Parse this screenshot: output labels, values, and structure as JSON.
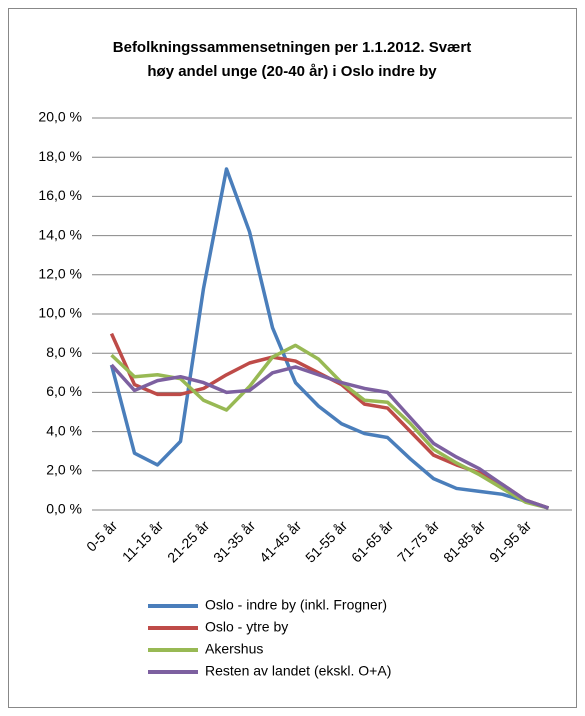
{
  "chart_data": {
    "type": "line",
    "title": [
      "Befolkningssammensetningen per 1.1.2012. Svært",
      "høy andel unge (20-40 år) i Oslo indre by"
    ],
    "categories": [
      "0-5 år",
      null,
      "11-15 år",
      null,
      "21-25 år",
      null,
      "31-35 år",
      null,
      "41-45 år",
      null,
      "51-55 år",
      null,
      "61-65 år",
      null,
      "71-75 år",
      null,
      "81-85 år",
      null,
      "91-95 år",
      null
    ],
    "series": [
      {
        "name": "Oslo - indre by (inkl. Frogner)",
        "color": "#4a7ebb",
        "values": [
          7.4,
          2.9,
          2.3,
          3.5,
          11.3,
          17.4,
          14.2,
          9.3,
          6.5,
          5.3,
          4.4,
          3.9,
          3.7,
          2.6,
          1.6,
          1.1,
          0.95,
          0.8,
          0.45,
          0.1
        ]
      },
      {
        "name": "Oslo - ytre by",
        "color": "#be4b48",
        "values": [
          9.0,
          6.4,
          5.9,
          5.9,
          6.2,
          6.9,
          7.5,
          7.8,
          7.6,
          7.0,
          6.4,
          5.4,
          5.2,
          4.0,
          2.8,
          2.3,
          1.9,
          1.3,
          0.5,
          0.1
        ]
      },
      {
        "name": "Akershus",
        "color": "#98b954",
        "values": [
          7.9,
          6.8,
          6.9,
          6.7,
          5.6,
          5.1,
          6.3,
          7.8,
          8.4,
          7.7,
          6.5,
          5.6,
          5.5,
          4.4,
          3.1,
          2.4,
          1.8,
          1.1,
          0.4,
          0.1
        ]
      },
      {
        "name": "Resten av landet (ekskl. O+A)",
        "color": "#7d60a0",
        "values": [
          7.4,
          6.1,
          6.6,
          6.8,
          6.5,
          6.0,
          6.1,
          7.0,
          7.3,
          6.9,
          6.5,
          6.2,
          6.0,
          4.7,
          3.4,
          2.7,
          2.1,
          1.3,
          0.5,
          0.1
        ]
      }
    ],
    "ylim": [
      0,
      20
    ],
    "yticks": [
      {
        "value": 0,
        "label": "0,0 %"
      },
      {
        "value": 2,
        "label": "2,0 %"
      },
      {
        "value": 4,
        "label": "4,0 %"
      },
      {
        "value": 6,
        "label": "6,0 %"
      },
      {
        "value": 8,
        "label": "8,0 %"
      },
      {
        "value": 10,
        "label": "10,0 %"
      },
      {
        "value": 12,
        "label": "12,0 %"
      },
      {
        "value": 14,
        "label": "14,0 %"
      },
      {
        "value": 16,
        "label": "16,0 %"
      },
      {
        "value": 18,
        "label": "18,0 %"
      },
      {
        "value": 20,
        "label": "20,0 %"
      }
    ],
    "grid": true
  }
}
